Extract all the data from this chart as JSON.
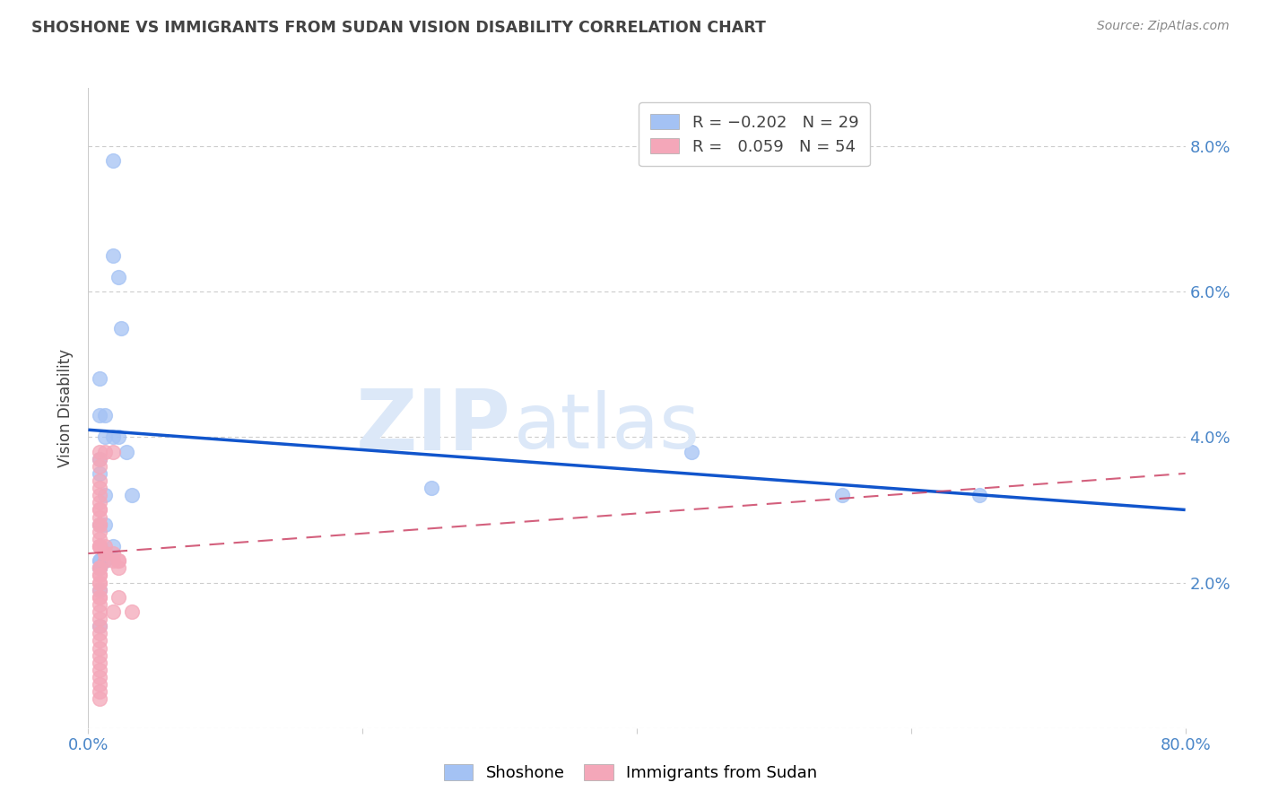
{
  "title": "SHOSHONE VS IMMIGRANTS FROM SUDAN VISION DISABILITY CORRELATION CHART",
  "source": "Source: ZipAtlas.com",
  "ylabel": "Vision Disability",
  "xlim": [
    0,
    0.8
  ],
  "ylim": [
    0,
    0.088
  ],
  "yticks": [
    0.0,
    0.02,
    0.04,
    0.06,
    0.08
  ],
  "ytick_labels": [
    "",
    "2.0%",
    "4.0%",
    "6.0%",
    "8.0%"
  ],
  "xticks": [
    0.0,
    0.2,
    0.4,
    0.6,
    0.8
  ],
  "xtick_labels": [
    "0.0%",
    "",
    "",
    "",
    "80.0%"
  ],
  "blue_R": -0.202,
  "blue_N": 29,
  "pink_R": 0.059,
  "pink_N": 54,
  "blue_color": "#a4c2f4",
  "pink_color": "#f4a7b9",
  "blue_line_color": "#1155cc",
  "pink_line_color": "#cc4466",
  "grid_color": "#cccccc",
  "title_color": "#434343",
  "axis_label_color": "#434343",
  "tick_color": "#4a86c8",
  "watermark_color": "#dce8f8",
  "blue_scatter_x": [
    0.018,
    0.018,
    0.022,
    0.024,
    0.008,
    0.008,
    0.012,
    0.012,
    0.018,
    0.022,
    0.028,
    0.008,
    0.008,
    0.012,
    0.032,
    0.008,
    0.012,
    0.018,
    0.44,
    0.25,
    0.55,
    0.65,
    0.008,
    0.008,
    0.012,
    0.008,
    0.008,
    0.008,
    0.008
  ],
  "blue_scatter_y": [
    0.078,
    0.065,
    0.062,
    0.055,
    0.048,
    0.043,
    0.043,
    0.04,
    0.04,
    0.04,
    0.038,
    0.037,
    0.035,
    0.032,
    0.032,
    0.028,
    0.028,
    0.025,
    0.038,
    0.033,
    0.032,
    0.032,
    0.023,
    0.023,
    0.023,
    0.022,
    0.022,
    0.019,
    0.014
  ],
  "pink_scatter_x": [
    0.008,
    0.012,
    0.008,
    0.008,
    0.008,
    0.008,
    0.008,
    0.008,
    0.008,
    0.008,
    0.008,
    0.008,
    0.008,
    0.008,
    0.008,
    0.008,
    0.008,
    0.008,
    0.012,
    0.012,
    0.012,
    0.018,
    0.018,
    0.018,
    0.022,
    0.022,
    0.022,
    0.012,
    0.008,
    0.008,
    0.008,
    0.008,
    0.008,
    0.008,
    0.008,
    0.008,
    0.008,
    0.008,
    0.008,
    0.008,
    0.008,
    0.008,
    0.022,
    0.018,
    0.032,
    0.008,
    0.008,
    0.008,
    0.008,
    0.008,
    0.008,
    0.008,
    0.008,
    0.008
  ],
  "pink_scatter_y": [
    0.038,
    0.038,
    0.037,
    0.036,
    0.034,
    0.033,
    0.032,
    0.031,
    0.03,
    0.03,
    0.029,
    0.028,
    0.028,
    0.027,
    0.026,
    0.025,
    0.025,
    0.025,
    0.025,
    0.024,
    0.024,
    0.024,
    0.023,
    0.038,
    0.023,
    0.023,
    0.022,
    0.023,
    0.022,
    0.022,
    0.021,
    0.021,
    0.02,
    0.02,
    0.019,
    0.018,
    0.018,
    0.017,
    0.016,
    0.015,
    0.014,
    0.013,
    0.018,
    0.016,
    0.016,
    0.012,
    0.011,
    0.01,
    0.009,
    0.008,
    0.007,
    0.006,
    0.005,
    0.004
  ],
  "blue_line_x0": 0.0,
  "blue_line_y0": 0.041,
  "blue_line_x1": 0.8,
  "blue_line_y1": 0.03,
  "pink_line_x0": 0.0,
  "pink_line_y0": 0.024,
  "pink_line_x1": 0.8,
  "pink_line_y1": 0.035
}
